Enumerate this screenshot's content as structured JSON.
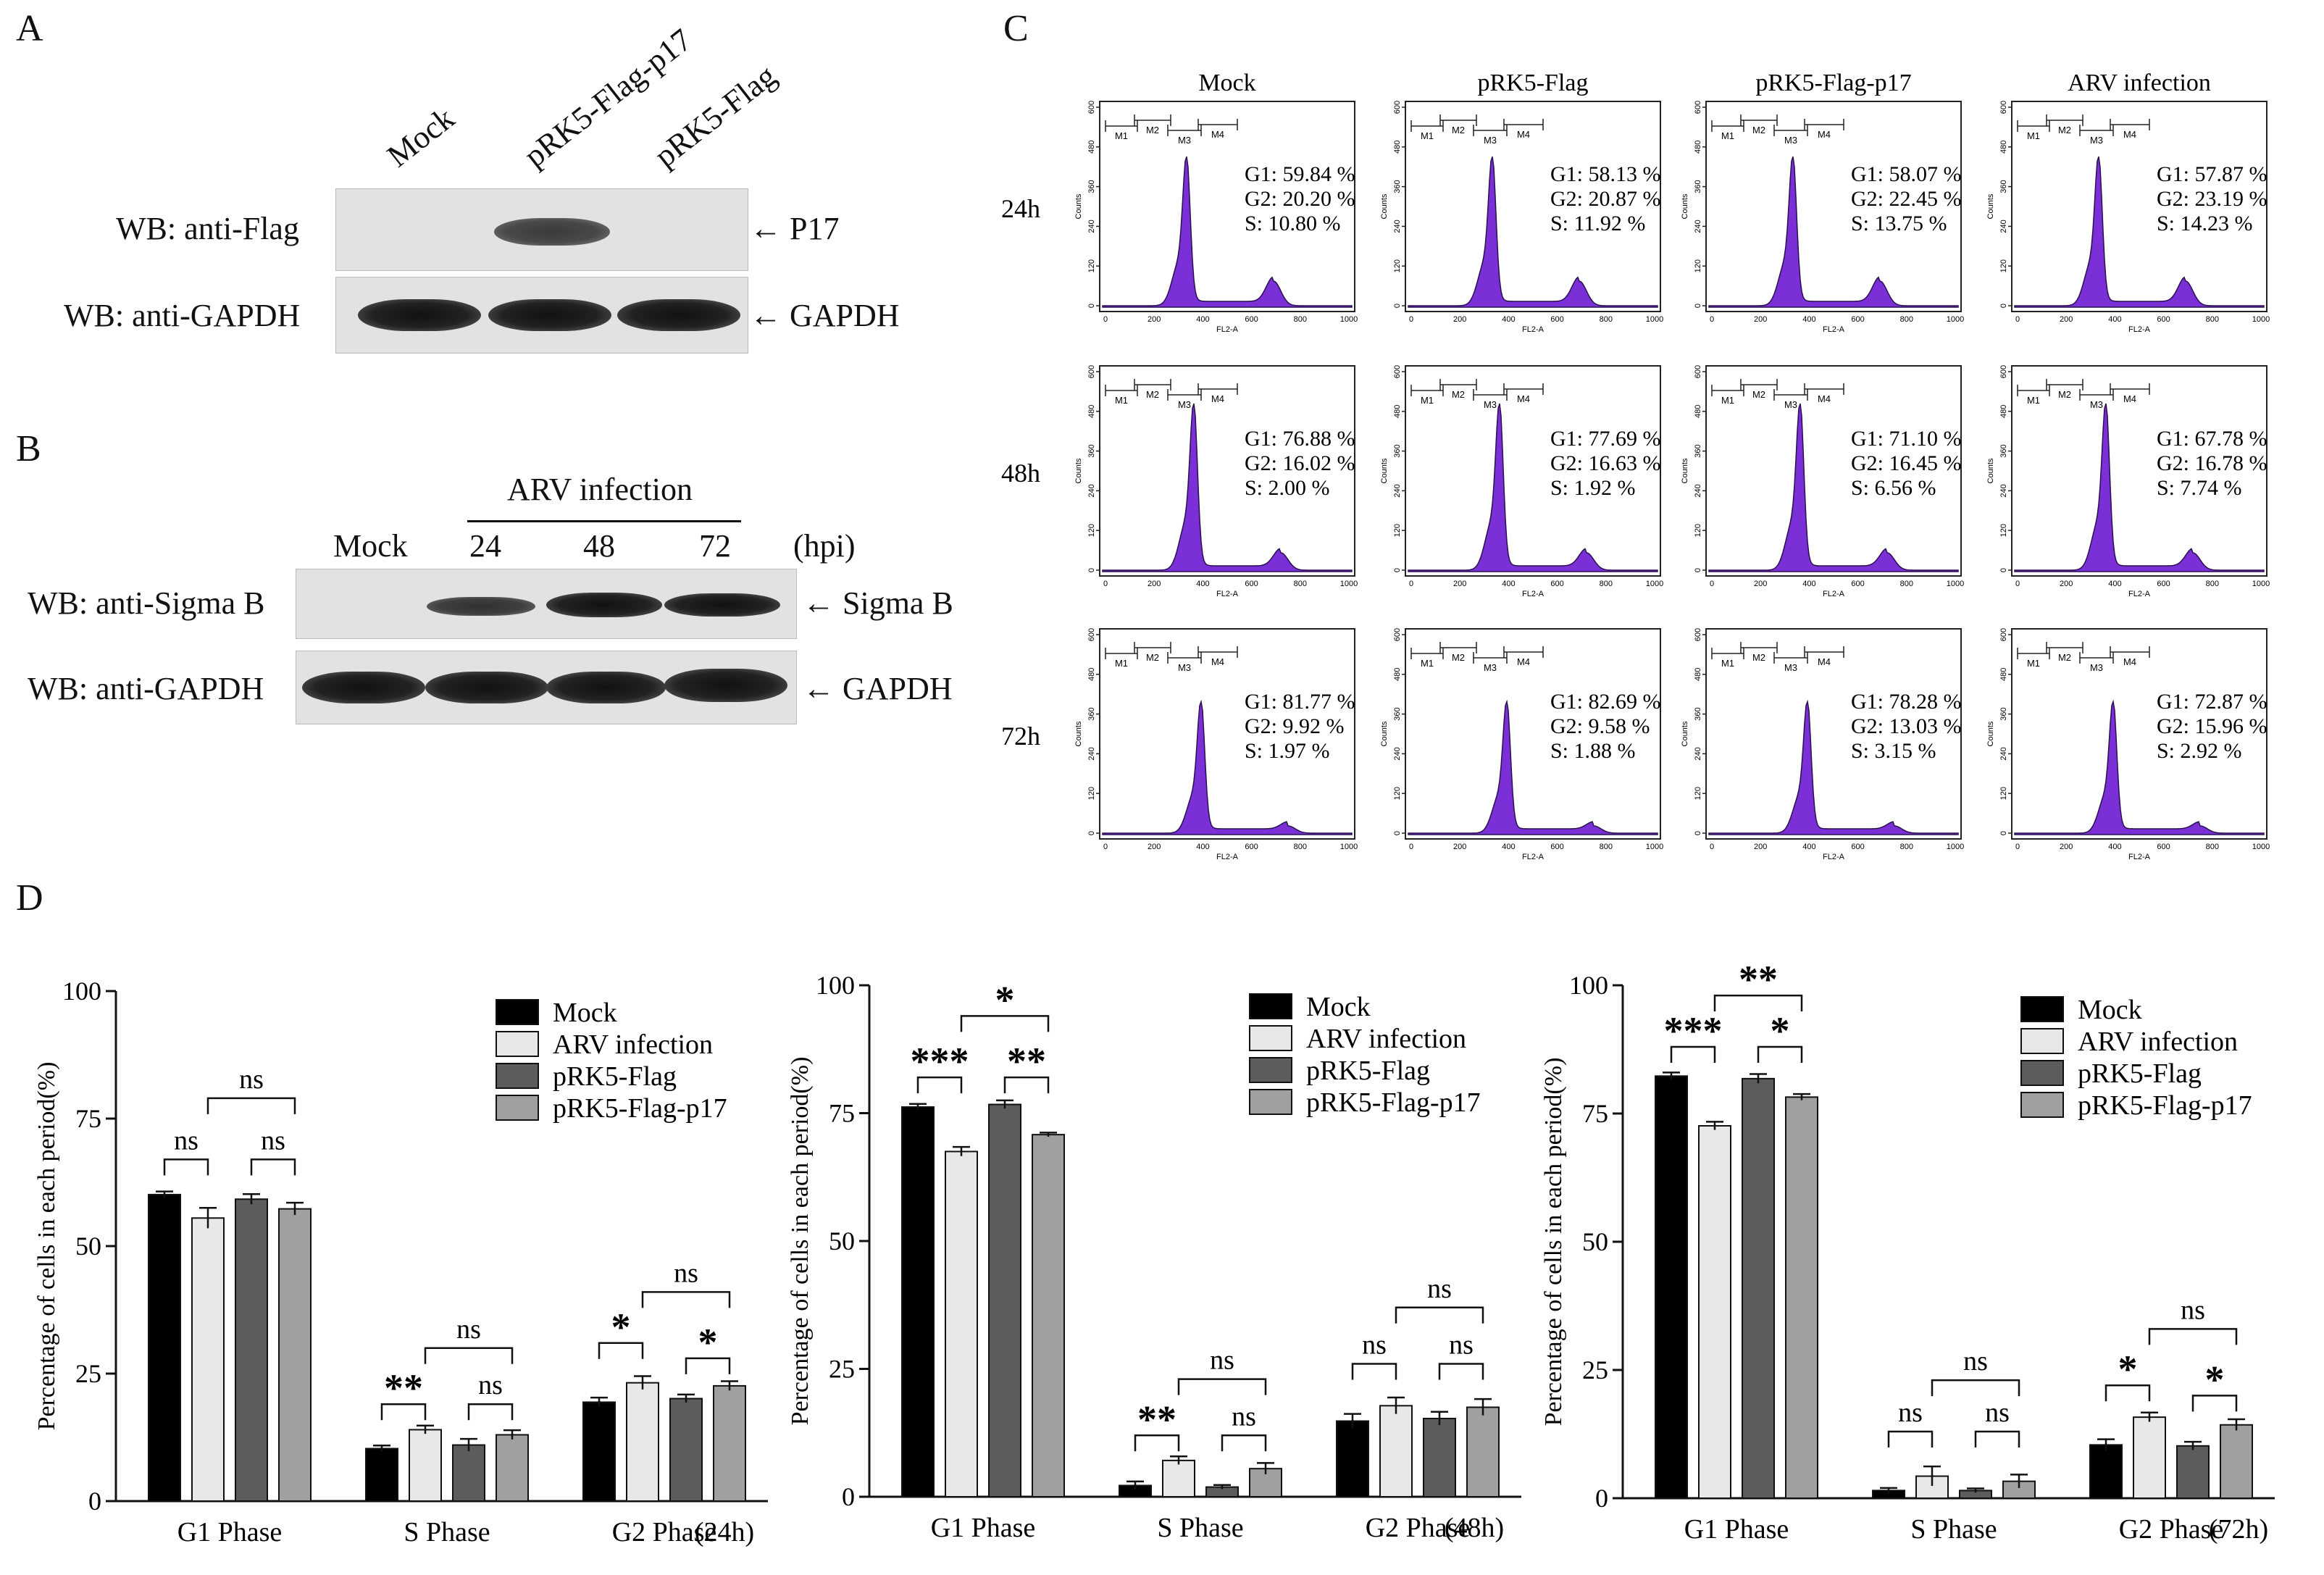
{
  "panels": {
    "A": {
      "letter": "A",
      "lanes": [
        "Mock",
        "pRK5-Flag-p17",
        "pRK5-Flag"
      ],
      "rows": [
        {
          "label": "WB: anti-Flag",
          "arrow": "P17"
        },
        {
          "label": "WB: anti-GAPDH",
          "arrow": "GAPDH"
        }
      ]
    },
    "B": {
      "letter": "B",
      "header": "ARV infection",
      "lanes": [
        "Mock",
        "24",
        "48",
        "72"
      ],
      "unit": "(hpi)",
      "rows": [
        {
          "label": "WB: anti-Sigma B",
          "arrow": "Sigma B"
        },
        {
          "label": "WB: anti-GAPDH",
          "arrow": "GAPDH"
        }
      ]
    },
    "C": {
      "letter": "C",
      "columns": [
        "Mock",
        "pRK5-Flag",
        "pRK5-Flag-p17",
        "ARV infection"
      ],
      "row_labels": [
        "24h",
        "48h",
        "72h"
      ],
      "axis_ticks_y": [
        "0",
        "120",
        "240",
        "360",
        "480",
        "600"
      ],
      "axis_ticks_x": [
        "0",
        "200",
        "400",
        "600",
        "800",
        "1000"
      ],
      "ylabel": "Counts",
      "xlabel": "FL2-A",
      "gates": [
        "M1",
        "M2",
        "M3",
        "M4"
      ],
      "stats": [
        [
          [
            "G1: 59.84 %",
            "G2: 20.20 %",
            "S: 10.80 %"
          ],
          [
            "G1: 58.13 %",
            "G2: 20.87 %",
            "S: 11.92 %"
          ],
          [
            "G1: 58.07 %",
            "G2: 22.45 %",
            "S: 13.75 %"
          ],
          [
            "G1: 57.87 %",
            "G2: 23.19 %",
            "S: 14.23 %"
          ]
        ],
        [
          [
            "G1: 76.88 %",
            "G2: 16.02 %",
            "S: 2.00 %"
          ],
          [
            "G1: 77.69 %",
            "G2: 16.63 %",
            "S: 1.92 %"
          ],
          [
            "G1: 71.10 %",
            "G2: 16.45 %",
            "S: 6.56 %"
          ],
          [
            "G1: 67.78 %",
            "G2: 16.78 %",
            "S: 7.74 %"
          ]
        ],
        [
          [
            "G1: 81.77 %",
            "G2: 9.92 %",
            "S: 1.97 %"
          ],
          [
            "G1: 82.69 %",
            "G2: 9.58 %",
            "S: 1.88 %"
          ],
          [
            "G1: 78.28 %",
            "G2: 13.03 %",
            "S: 3.15 %"
          ],
          [
            "G1: 72.87 %",
            "G2: 15.96 %",
            "S: 2.92 %"
          ]
        ]
      ]
    },
    "D": {
      "letter": "D"
    }
  },
  "chart_data": [
    {
      "type": "bar",
      "ylabel": "Percentage of cells in each period(%)",
      "yticks": [
        "0",
        "25",
        "50",
        "75",
        "100"
      ],
      "ylim": [
        0,
        100
      ],
      "categories": [
        "G1 Phase",
        "S Phase",
        "G2 Phase"
      ],
      "timepoint": "(24h)",
      "series": [
        {
          "name": "Mock",
          "color": "#000000",
          "values": [
            60.1,
            10.3,
            19.4
          ],
          "errors": [
            0.6,
            0.6,
            0.9
          ]
        },
        {
          "name": "ARV infection",
          "color": "#e8e8e8",
          "values": [
            55.5,
            14.0,
            23.2
          ],
          "errors": [
            2.0,
            0.8,
            1.3
          ]
        },
        {
          "name": "pRK5-Flag",
          "color": "#5c5c5c",
          "values": [
            59.2,
            11.0,
            20.1
          ],
          "errors": [
            1.0,
            1.2,
            0.8
          ]
        },
        {
          "name": "pRK5-Flag-p17",
          "color": "#a0a0a0",
          "values": [
            57.3,
            13.0,
            22.6
          ],
          "errors": [
            1.2,
            0.9,
            0.9
          ]
        }
      ],
      "significance": [
        {
          "label": "ns",
          "cat": 0,
          "from": 0,
          "to": 1,
          "y": 67
        },
        {
          "label": "ns",
          "cat": 0,
          "from": 2,
          "to": 3,
          "y": 67
        },
        {
          "label": "ns",
          "cat": 0,
          "from": 1,
          "to": 3,
          "y": 79
        },
        {
          "label": "**",
          "cat": 1,
          "from": 0,
          "to": 1,
          "y": 19
        },
        {
          "label": "ns",
          "cat": 1,
          "from": 2,
          "to": 3,
          "y": 19
        },
        {
          "label": "ns",
          "cat": 1,
          "from": 1,
          "to": 3,
          "y": 30
        },
        {
          "label": "*",
          "cat": 2,
          "from": 0,
          "to": 1,
          "y": 31
        },
        {
          "label": "*",
          "cat": 2,
          "from": 2,
          "to": 3,
          "y": 28
        },
        {
          "label": "ns",
          "cat": 2,
          "from": 1,
          "to": 3,
          "y": 41
        }
      ]
    },
    {
      "type": "bar",
      "ylabel": "Percentage of cells in each period(%)",
      "yticks": [
        "0",
        "25",
        "50",
        "75",
        "100"
      ],
      "ylim": [
        0,
        100
      ],
      "categories": [
        "G1 Phase",
        "S Phase",
        "G2 Phase"
      ],
      "timepoint": "(48h)",
      "series": [
        {
          "name": "Mock",
          "color": "#000000",
          "values": [
            76.2,
            2.2,
            14.8
          ],
          "errors": [
            0.6,
            0.8,
            1.4
          ]
        },
        {
          "name": "ARV infection",
          "color": "#e8e8e8",
          "values": [
            67.5,
            7.1,
            17.8
          ],
          "errors": [
            0.9,
            0.8,
            1.6
          ]
        },
        {
          "name": "pRK5-Flag",
          "color": "#5c5c5c",
          "values": [
            76.7,
            1.9,
            15.3
          ],
          "errors": [
            0.8,
            0.4,
            1.3
          ]
        },
        {
          "name": "pRK5-Flag-p17",
          "color": "#a0a0a0",
          "values": [
            70.8,
            5.5,
            17.5
          ],
          "errors": [
            0.4,
            1.1,
            1.6
          ]
        }
      ],
      "significance": [
        {
          "label": "***",
          "cat": 0,
          "from": 0,
          "to": 1,
          "y": 82
        },
        {
          "label": "**",
          "cat": 0,
          "from": 2,
          "to": 3,
          "y": 82
        },
        {
          "label": "*",
          "cat": 0,
          "from": 1,
          "to": 3,
          "y": 94
        },
        {
          "label": "**",
          "cat": 1,
          "from": 0,
          "to": 1,
          "y": 12
        },
        {
          "label": "ns",
          "cat": 1,
          "from": 2,
          "to": 3,
          "y": 12
        },
        {
          "label": "ns",
          "cat": 1,
          "from": 1,
          "to": 3,
          "y": 23
        },
        {
          "label": "ns",
          "cat": 2,
          "from": 0,
          "to": 1,
          "y": 26
        },
        {
          "label": "ns",
          "cat": 2,
          "from": 2,
          "to": 3,
          "y": 26
        },
        {
          "label": "ns",
          "cat": 2,
          "from": 1,
          "to": 3,
          "y": 37
        }
      ]
    },
    {
      "type": "bar",
      "ylabel": "Percentage of cells in each period(%)",
      "yticks": [
        "0",
        "25",
        "50",
        "75",
        "100"
      ],
      "ylim": [
        0,
        100
      ],
      "categories": [
        "G1 Phase",
        "S Phase",
        "G2 Phase"
      ],
      "timepoint": "(72h)",
      "series": [
        {
          "name": "Mock",
          "color": "#000000",
          "values": [
            82.3,
            1.5,
            10.4
          ],
          "errors": [
            0.7,
            0.5,
            1.1
          ]
        },
        {
          "name": "ARV infection",
          "color": "#e8e8e8",
          "values": [
            72.6,
            4.3,
            15.8
          ],
          "errors": [
            0.8,
            1.9,
            0.9
          ]
        },
        {
          "name": "pRK5-Flag",
          "color": "#5c5c5c",
          "values": [
            81.8,
            1.5,
            10.2
          ],
          "errors": [
            0.9,
            0.4,
            0.8
          ]
        },
        {
          "name": "pRK5-Flag-p17",
          "color": "#a0a0a0",
          "values": [
            78.2,
            3.3,
            14.3
          ],
          "errors": [
            0.6,
            1.3,
            1.1
          ]
        }
      ],
      "significance": [
        {
          "label": "***",
          "cat": 0,
          "from": 0,
          "to": 1,
          "y": 88
        },
        {
          "label": "*",
          "cat": 0,
          "from": 2,
          "to": 3,
          "y": 88
        },
        {
          "label": "**",
          "cat": 0,
          "from": 1,
          "to": 3,
          "y": 98
        },
        {
          "label": "ns",
          "cat": 1,
          "from": 0,
          "to": 1,
          "y": 13
        },
        {
          "label": "ns",
          "cat": 1,
          "from": 2,
          "to": 3,
          "y": 13
        },
        {
          "label": "ns",
          "cat": 1,
          "from": 1,
          "to": 3,
          "y": 23
        },
        {
          "label": "*",
          "cat": 2,
          "from": 0,
          "to": 1,
          "y": 22
        },
        {
          "label": "*",
          "cat": 2,
          "from": 2,
          "to": 3,
          "y": 20
        },
        {
          "label": "ns",
          "cat": 2,
          "from": 1,
          "to": 3,
          "y": 33
        }
      ]
    }
  ]
}
